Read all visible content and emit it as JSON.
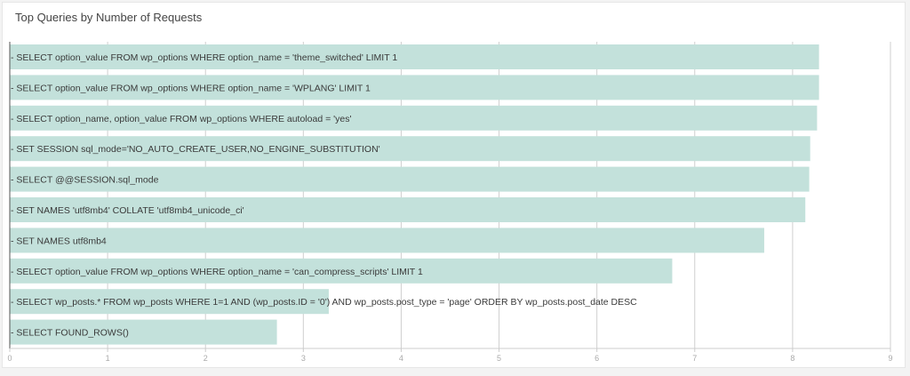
{
  "panel": {
    "title": "Top Queries by Number of Requests"
  },
  "colors": {
    "bar": "#c3e1db",
    "grid": "#cfcfcf",
    "axis": "#cccccc"
  },
  "chart_data": {
    "type": "bar",
    "orientation": "horizontal",
    "title": "Top Queries by Number of Requests",
    "xlabel": "",
    "ylabel": "",
    "xlim": [
      0,
      9
    ],
    "xticks": [
      0,
      1,
      2,
      3,
      4,
      5,
      6,
      7,
      8,
      9
    ],
    "grid": true,
    "legend": "none",
    "categories": [
      "- SELECT option_value FROM wp_options WHERE option_name = 'theme_switched' LIMIT 1",
      "- SELECT option_value FROM wp_options WHERE option_name = 'WPLANG' LIMIT 1",
      "- SELECT option_name, option_value FROM wp_options WHERE autoload = 'yes'",
      "- SET SESSION sql_mode='NO_AUTO_CREATE_USER,NO_ENGINE_SUBSTITUTION'",
      "- SELECT @@SESSION.sql_mode",
      "- SET NAMES 'utf8mb4' COLLATE 'utf8mb4_unicode_ci'",
      "- SET NAMES utf8mb4",
      "- SELECT option_value FROM wp_options WHERE option_name = 'can_compress_scripts' LIMIT 1",
      "- SELECT wp_posts.* FROM wp_posts WHERE 1=1 AND (wp_posts.ID = '0') AND wp_posts.post_type = 'page' ORDER BY wp_posts.post_date DESC",
      "- SELECT FOUND_ROWS()"
    ],
    "values": [
      8.27,
      8.27,
      8.25,
      8.18,
      8.17,
      8.13,
      7.71,
      6.77,
      3.26,
      2.73
    ]
  }
}
